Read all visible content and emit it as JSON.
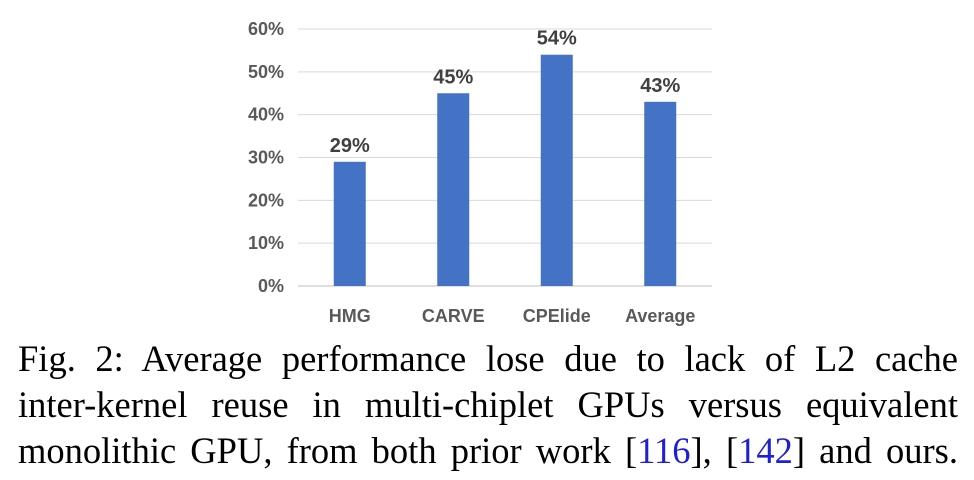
{
  "chart_data": {
    "type": "bar",
    "categories": [
      "HMG",
      "CARVE",
      "CPElide",
      "Average"
    ],
    "values": [
      29,
      45,
      54,
      43
    ],
    "data_labels": [
      "29%",
      "45%",
      "54%",
      "43%"
    ],
    "y_ticks": [
      "0%",
      "10%",
      "20%",
      "30%",
      "40%",
      "50%",
      "60%"
    ],
    "ylim": [
      0,
      60
    ],
    "grid": true,
    "legend": "none",
    "bar_color": "#4472c4",
    "title": "",
    "xlabel": "",
    "ylabel": ""
  },
  "caption": {
    "line1": "Fig. 2: Average performance lose due to lack of L2 cache",
    "line2": "inter-kernel reuse in multi-chiplet GPUs versus equivalent",
    "line3_a": "monolithic GPU, from both prior work [",
    "ref1": "116",
    "line3_b": "], [",
    "ref2": "142",
    "line3_c": "] and ours."
  }
}
